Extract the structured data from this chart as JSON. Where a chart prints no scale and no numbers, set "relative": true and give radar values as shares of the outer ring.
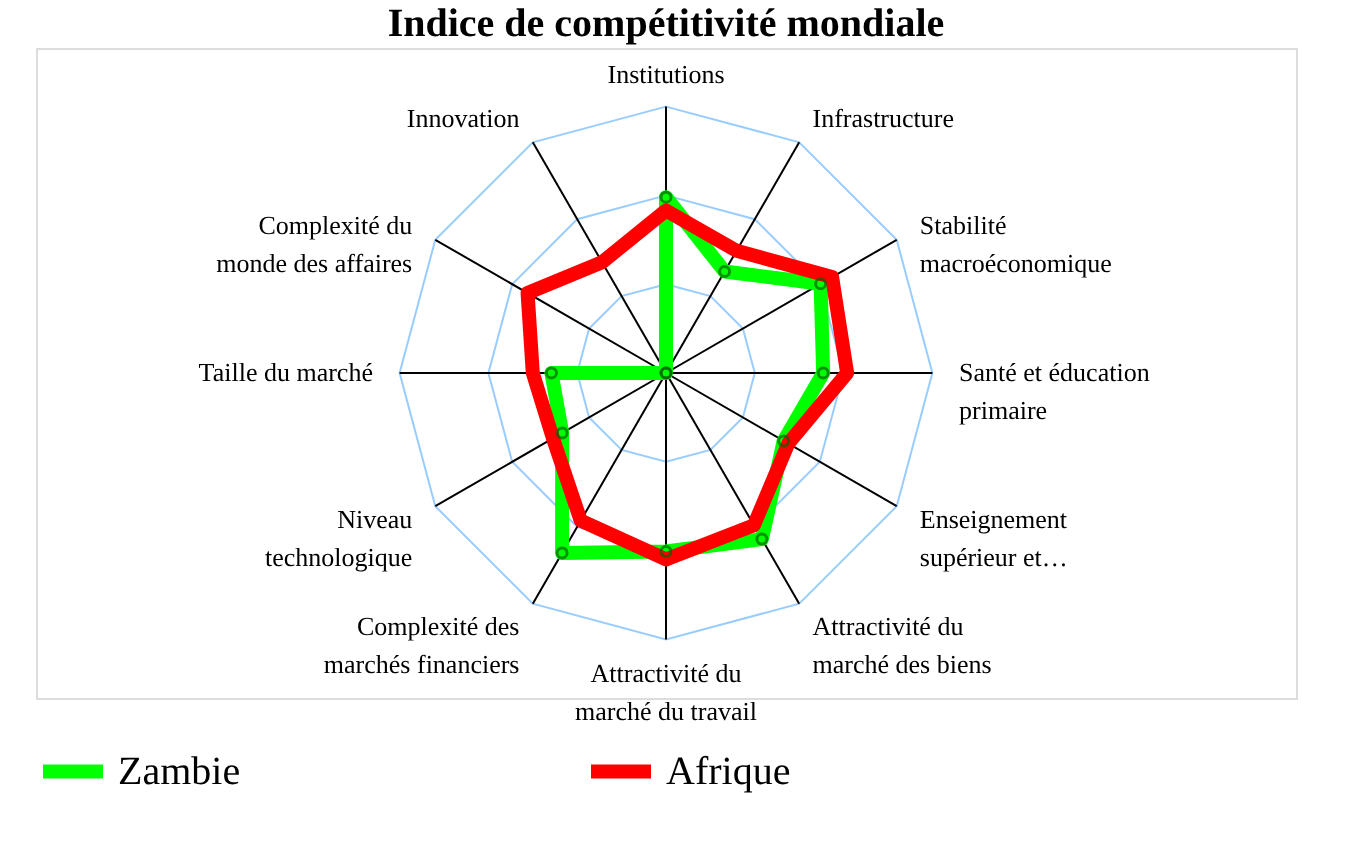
{
  "chart_data": {
    "type": "radar",
    "title": "Indice de compétitivité mondiale",
    "relative": true,
    "grid": true,
    "legend": "bottom",
    "categories": [
      "Institutions",
      "Infrastructure",
      "Stabilité macroéconomique",
      "Santé et éducation primaire",
      "Enseignement supérieur et…",
      "Attractivité du marché des biens",
      "Attractivité du marché du travail",
      "Complexité des marchés financiers",
      "Niveau technologique",
      "Taille du marché",
      "Complexité du monde des affaires",
      "Innovation"
    ],
    "series": [
      {
        "name": "Zambie",
        "color": "#00ff00",
        "marker": "circle",
        "values": [
          0.66,
          0.44,
          0.67,
          0.59,
          0.51,
          0.72,
          0.67,
          0.78,
          0.45,
          0.43,
          0,
          0
        ]
      },
      {
        "name": "Afrique",
        "color": "#ff0000",
        "marker": "none",
        "values": [
          0.61,
          0.53,
          0.72,
          0.68,
          0.53,
          0.66,
          0.7,
          0.64,
          0.49,
          0.5,
          0.6,
          0.48
        ]
      }
    ]
  }
}
